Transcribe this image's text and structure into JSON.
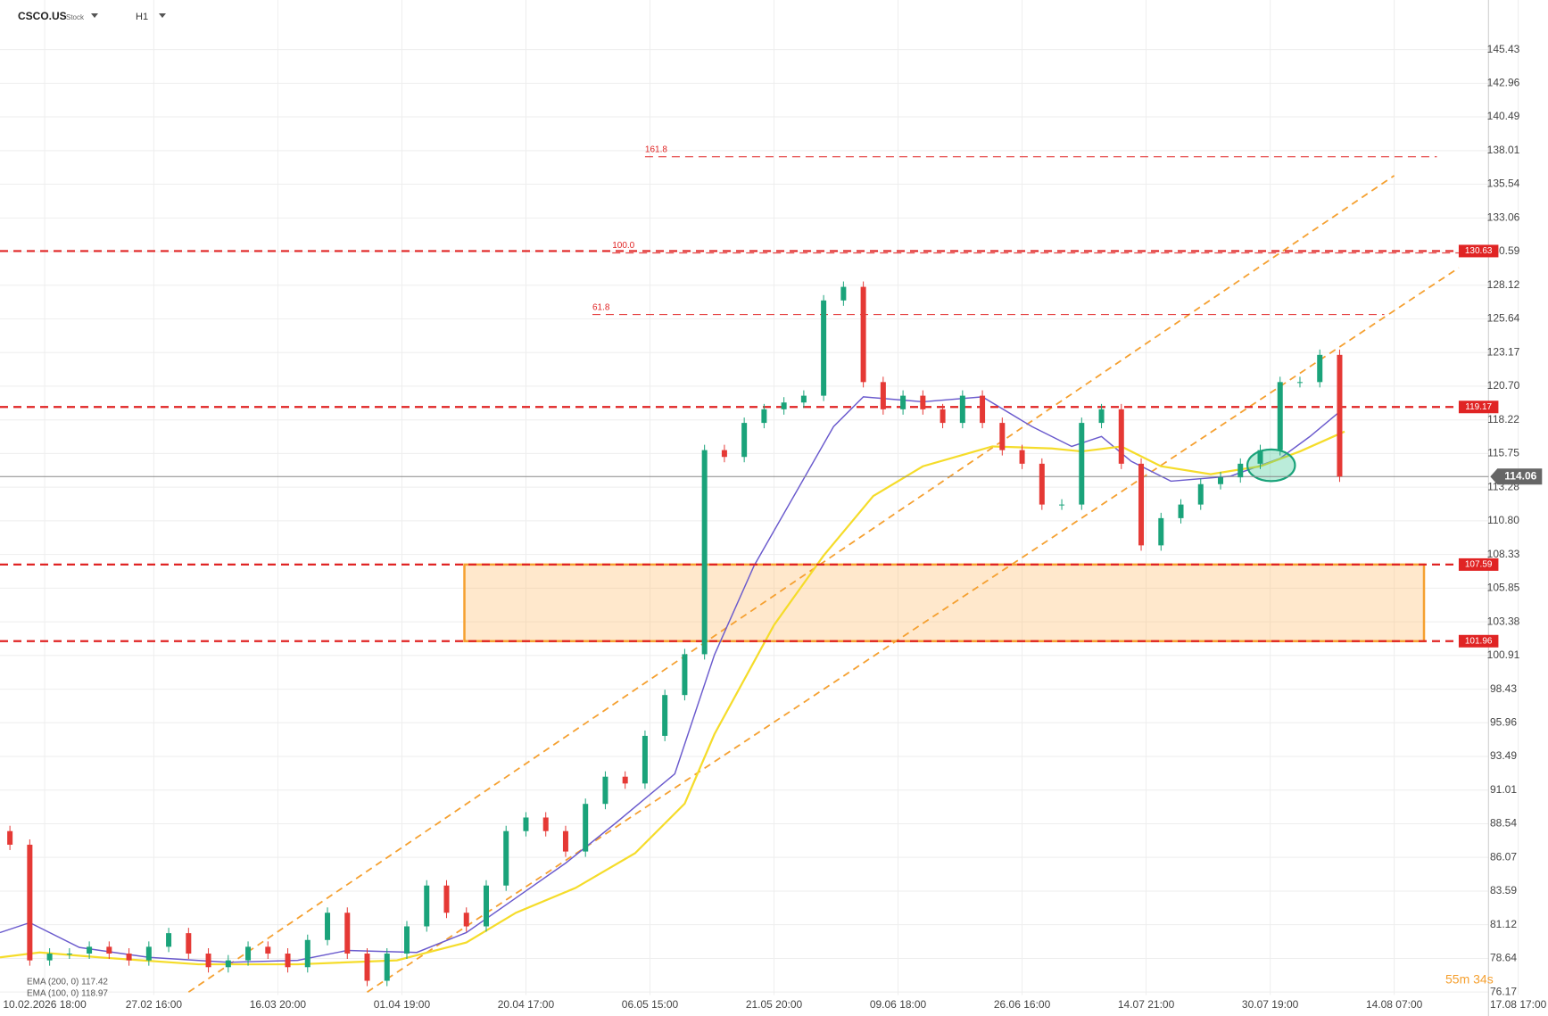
{
  "header": {
    "symbol": "CSCO.US",
    "kind": "Stock",
    "timeframe": "H1"
  },
  "chart_data": {
    "type": "candlestick",
    "up_color": "#1aa37a",
    "down_color": "#e53935",
    "ylim": [
      75.95,
      149.08
    ],
    "yticks": [
      145.43,
      142.96,
      140.49,
      138.01,
      135.54,
      133.06,
      130.59,
      128.12,
      125.64,
      123.17,
      {
        "value": 120.7,
        "label": "120.70"
      },
      118.22,
      115.75,
      113.28,
      {
        "value": 110.8,
        "label": "110.80"
      },
      108.33,
      105.85,
      103.38,
      100.91,
      98.43,
      95.96,
      93.49,
      91.01,
      88.54,
      86.07,
      83.59,
      81.12,
      78.64,
      76.17
    ],
    "x_labels": [
      "10.02.2026 18:00",
      "27.02 16:00",
      "16.03 20:00",
      "01.04 19:00",
      "20.04 17:00",
      "06.05 15:00",
      "21.05 20:00",
      "09.06 18:00",
      "26.06 16:00",
      "14.07 21:00",
      "30.07 19:00",
      "14.08 07:00",
      "17.08 17:00"
    ],
    "open": [
      88,
      87,
      78.5,
      79,
      79,
      79.5,
      79,
      78.5,
      79.5,
      80.5,
      79,
      78,
      78.5,
      79.5,
      79,
      78,
      80,
      82,
      79,
      77,
      79,
      81,
      84,
      82,
      81,
      84,
      88,
      89,
      88,
      86.5,
      90,
      92,
      91.5,
      95,
      98,
      101,
      116,
      115.5,
      118,
      119,
      119.5,
      120,
      127,
      128,
      121,
      119,
      120,
      119,
      118,
      120,
      118,
      116,
      115,
      112,
      112,
      118,
      119,
      115,
      109,
      111,
      112,
      113.5,
      114,
      115,
      116,
      121,
      121,
      123
    ],
    "close": [
      87,
      78.5,
      79,
      79,
      79.5,
      79,
      78.5,
      79.5,
      80.5,
      79,
      78,
      78.5,
      79.5,
      79,
      78,
      80,
      82,
      79,
      77,
      79,
      81,
      84,
      82,
      81,
      84,
      88,
      89,
      88,
      86.5,
      90,
      92,
      91.5,
      95,
      98,
      101,
      116,
      115.5,
      118,
      119,
      119.5,
      120,
      127,
      128,
      121,
      119,
      120,
      119,
      118,
      120,
      118,
      116,
      115,
      112,
      112,
      118,
      119,
      115,
      109,
      111,
      112,
      113.5,
      114,
      115,
      116,
      121,
      121,
      123,
      114.06
    ],
    "levels": [
      {
        "value": 130.63,
        "label": "130.63"
      },
      {
        "value": 119.17,
        "label": "119.17"
      },
      {
        "value": 107.59,
        "label": "107.59"
      },
      {
        "value": 101.96,
        "label": "101.96"
      }
    ],
    "level_color": "#e02424",
    "fib_levels": [
      {
        "label": "161.8",
        "price": 137.56
      },
      {
        "label": "100.0",
        "price": 130.49
      },
      {
        "label": "61.8",
        "price": 125.96
      }
    ],
    "current_price": 114.06,
    "legend": [
      "EMA (200, 0) 117.42",
      "EMA (100, 0) 118.97"
    ],
    "timer": "55m 34s"
  }
}
